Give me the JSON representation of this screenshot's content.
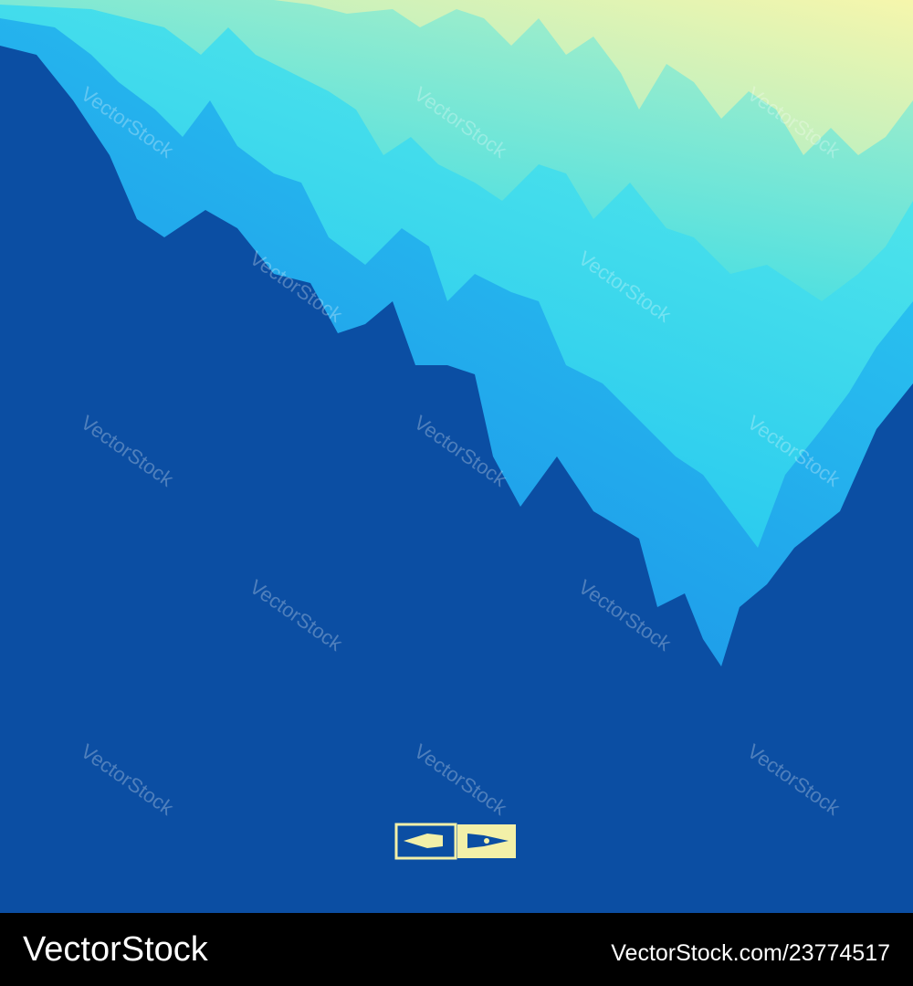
{
  "watermark": "VectorStock",
  "footer": {
    "brand": "VectorStock",
    "id": "VectorStock.com/23774517"
  }
}
